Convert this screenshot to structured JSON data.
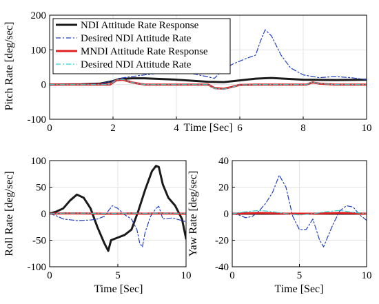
{
  "chart_data": [
    {
      "type": "line",
      "xlabel": "Time  [Sec]",
      "ylabel": "Pitch Rate  [deg/sec]",
      "xlim": [
        0,
        10
      ],
      "ylim": [
        -100,
        200
      ],
      "xticks": [
        "0",
        "2",
        "4",
        "6",
        "8",
        "10"
      ],
      "yticks": [
        "-100",
        "0",
        "100",
        "200"
      ],
      "grid": true,
      "legend_position": "top-left",
      "series": [
        {
          "name": "NDI Attitude Rate Response",
          "color": "#1a1a1a",
          "style": "solid",
          "width": 3,
          "x": [
            0,
            1,
            1.6,
            2,
            2.2,
            2.6,
            3,
            4,
            5,
            5.5,
            6,
            6.5,
            7,
            8,
            9,
            10
          ],
          "y": [
            0,
            1,
            3,
            10,
            16,
            18,
            18,
            14,
            8,
            7,
            12,
            17,
            19,
            14,
            13,
            14
          ]
        },
        {
          "name": "Desired NDI Attitude Rate",
          "color": "#1f3fbf",
          "style": "dashdot",
          "width": 1.2,
          "x": [
            0,
            1,
            1.6,
            2,
            2.2,
            2.5,
            3,
            4,
            4.6,
            5,
            5.2,
            5.5,
            5.8,
            6.2,
            6.5,
            6.65,
            6.8,
            7,
            7.3,
            7.6,
            8,
            8.5,
            9,
            9.5,
            10
          ],
          "y": [
            0,
            1,
            3,
            10,
            18,
            22,
            28,
            38,
            30,
            22,
            18,
            45,
            60,
            75,
            85,
            125,
            158,
            140,
            85,
            48,
            28,
            20,
            23,
            20,
            14
          ]
        },
        {
          "name": "MNDI Attitude Rate Response",
          "color": "#e02020",
          "style": "solid",
          "width": 3,
          "x": [
            0,
            1.9,
            2.1,
            2.3,
            2.6,
            3,
            5,
            5.2,
            5.5,
            5.7,
            6,
            6.5,
            7.5,
            8.1,
            8.3,
            8.5,
            9,
            10
          ],
          "y": [
            0,
            0,
            12,
            14,
            6,
            0,
            0,
            -10,
            -12,
            -8,
            -1,
            0,
            0,
            0,
            6,
            3,
            0,
            0
          ]
        },
        {
          "name": "Desired NDI Attitude Rate",
          "color": "#33d0d8",
          "style": "dashdot",
          "width": 1.2,
          "x": [
            0,
            1.9,
            2.1,
            2.3,
            2.6,
            3,
            5,
            5.2,
            5.5,
            5.7,
            6,
            6.5,
            7.5,
            8.1,
            8.3,
            8.5,
            9,
            10
          ],
          "y": [
            0,
            0,
            13,
            15,
            6,
            0,
            0,
            -11,
            -13,
            -9,
            -1,
            0,
            0,
            0,
            7,
            3,
            0,
            0
          ]
        }
      ]
    },
    {
      "type": "line",
      "xlabel": "Time  [Sec]",
      "ylabel": "Roll Rate  [deg/sec]",
      "xlim": [
        0,
        10
      ],
      "ylim": [
        -100,
        100
      ],
      "xticks": [
        "0",
        "5",
        "10"
      ],
      "yticks": [
        "-100",
        "-50",
        "0",
        "50",
        "100"
      ],
      "grid": true,
      "series": [
        {
          "color": "#1a1a1a",
          "style": "solid",
          "width": 3,
          "x": [
            0,
            0.5,
            1,
            1.5,
            2,
            2.5,
            3,
            3.5,
            4,
            4.3,
            4.5,
            5,
            5.5,
            6,
            6.5,
            7,
            7.5,
            7.8,
            8,
            8.3,
            8.7,
            9.2,
            9.7,
            10
          ],
          "y": [
            0,
            4,
            10,
            25,
            36,
            30,
            10,
            -25,
            -55,
            -70,
            -50,
            -45,
            -40,
            -30,
            5,
            45,
            80,
            90,
            88,
            55,
            30,
            15,
            -10,
            -47
          ]
        },
        {
          "color": "#1f3fbf",
          "style": "dashdot",
          "width": 1.2,
          "x": [
            0,
            0.5,
            1,
            2,
            3,
            3.5,
            4,
            4.3,
            4.6,
            5,
            5.5,
            6,
            6.4,
            6.6,
            6.8,
            7,
            7.4,
            7.8,
            8,
            8.3,
            9,
            10
          ],
          "y": [
            0,
            -4,
            -10,
            -13,
            -12,
            -10,
            -5,
            5,
            15,
            10,
            -2,
            -10,
            -30,
            -55,
            -63,
            -35,
            -5,
            10,
            14,
            -10,
            -8,
            -15
          ]
        },
        {
          "color": "#e02020",
          "style": "solid",
          "width": 3,
          "x": [
            0,
            1,
            2,
            4,
            5,
            6,
            7,
            8,
            10
          ],
          "y": [
            0,
            0.5,
            0.5,
            0,
            0,
            0.5,
            0,
            0.5,
            0
          ]
        },
        {
          "color": "#33d0d8",
          "style": "dashdot",
          "width": 1.2,
          "x": [
            0,
            1,
            2,
            4,
            5,
            6,
            7,
            8,
            10
          ],
          "y": [
            0,
            1,
            1,
            0.5,
            0.5,
            1,
            0.5,
            1,
            0.5
          ]
        }
      ]
    },
    {
      "type": "line",
      "xlabel": "Time  [Sec]",
      "ylabel": "Yaw Rate  [deg/sec]",
      "xlim": [
        0,
        10
      ],
      "ylim": [
        -40,
        40
      ],
      "xticks": [
        "0",
        "5",
        "10"
      ],
      "yticks": [
        "-40",
        "-20",
        "0",
        "20",
        "40"
      ],
      "grid": true,
      "series": [
        {
          "color": "#1a1a1a",
          "style": "solid",
          "width": 3,
          "x": [
            0,
            2,
            4,
            6,
            8,
            10
          ],
          "y": [
            0,
            0,
            0,
            0,
            0,
            0
          ]
        },
        {
          "color": "#1f3fbf",
          "style": "dashdot",
          "width": 1.2,
          "x": [
            0,
            0.5,
            1,
            1.5,
            2,
            2.5,
            3,
            3.5,
            4,
            4.5,
            5,
            5.5,
            6,
            6.5,
            6.8,
            7,
            7.5,
            8,
            8.5,
            9,
            9.5,
            10
          ],
          "y": [
            0,
            -1,
            -3,
            -2,
            2,
            8,
            16,
            29,
            20,
            -2,
            -12,
            -12,
            -4,
            -20,
            -25,
            -20,
            -8,
            2,
            6,
            5,
            -1,
            -5
          ]
        },
        {
          "color": "#e02020",
          "style": "solid",
          "width": 3,
          "x": [
            0,
            2,
            4,
            6,
            8,
            10
          ],
          "y": [
            0,
            0.5,
            0,
            0,
            0.5,
            0
          ]
        },
        {
          "color": "#33d0d8",
          "style": "dashdot",
          "width": 1.2,
          "x": [
            0,
            1,
            2,
            3,
            4,
            5,
            6,
            7,
            8,
            9,
            10
          ],
          "y": [
            0,
            1.5,
            2.5,
            1.5,
            0,
            -1,
            0,
            1.5,
            2.5,
            1,
            0
          ]
        }
      ]
    }
  ]
}
